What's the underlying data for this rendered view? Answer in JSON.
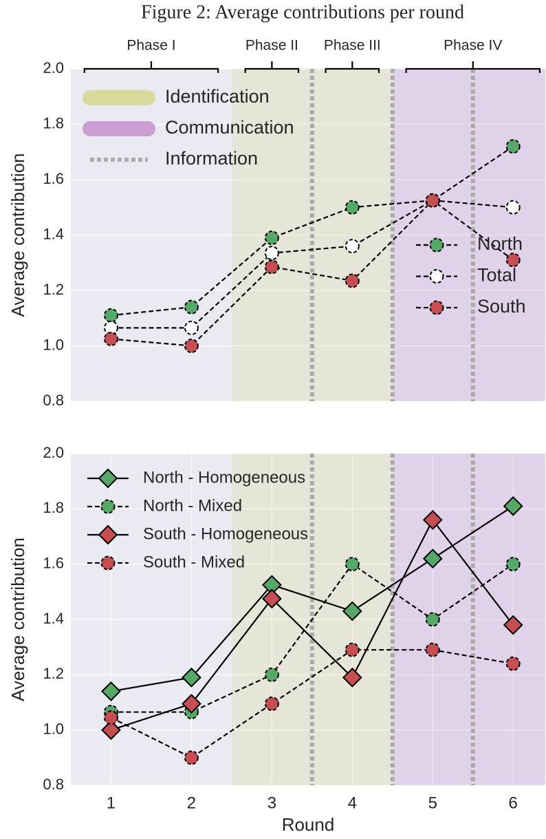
{
  "title": "Figure 2: Average contributions per round",
  "phases": [
    {
      "label": "Phase I",
      "rounds": [
        1,
        2
      ]
    },
    {
      "label": "Phase II",
      "rounds": [
        3
      ]
    },
    {
      "label": "Phase III",
      "rounds": [
        4
      ]
    },
    {
      "label": "Phase IV",
      "rounds": [
        5,
        6
      ]
    }
  ],
  "chart_data": [
    {
      "type": "line",
      "ylabel": "Average contribution",
      "x": [
        1,
        2,
        3,
        4,
        5,
        6
      ],
      "xlim": [
        0.5,
        6.4
      ],
      "ylim": [
        0.8,
        2.0
      ],
      "yticks": [
        0.8,
        {
          "value": 1.0,
          "label": "1.0"
        },
        1.2,
        1.4,
        1.6,
        1.8,
        {
          "value": 2.0,
          "label": "2.0"
        }
      ],
      "grid": true,
      "legend_loc": "lower right",
      "region_legend_loc": "upper left",
      "regions": [
        {
          "name": "Identification",
          "x": [
            2.5,
            4.5
          ],
          "color": "#d6d68c"
        },
        {
          "name": "Communication",
          "x": [
            4.5,
            6.4
          ],
          "color": "#c490d0"
        }
      ],
      "vlines": {
        "name": "Information",
        "x": [
          3.5,
          4.5,
          5.5
        ],
        "color": "#aaaaaa"
      },
      "series": [
        {
          "name": "North",
          "color": "#55a868",
          "marker": "o",
          "linestyle": "dashed",
          "values": [
            1.11,
            1.14,
            1.39,
            1.5,
            1.525,
            1.72
          ]
        },
        {
          "name": "Total",
          "color": "#ffffff",
          "marker": "o",
          "linestyle": "dashed",
          "values": [
            1.065,
            1.065,
            1.335,
            1.36,
            1.525,
            1.5
          ]
        },
        {
          "name": "South",
          "color": "#c44e52",
          "marker": "o",
          "linestyle": "dashed",
          "values": [
            1.025,
            1.0,
            1.285,
            1.235,
            1.525,
            1.31
          ]
        }
      ]
    },
    {
      "type": "line",
      "ylabel": "Average contribution",
      "xlabel": "Round",
      "x": [
        1,
        2,
        3,
        4,
        5,
        6
      ],
      "xlim": [
        0.5,
        6.4
      ],
      "ylim": [
        0.8,
        2.0
      ],
      "xticks": [
        1,
        2,
        3,
        4,
        5,
        6
      ],
      "yticks": [
        0.8,
        {
          "value": 1.0,
          "label": "1.0"
        },
        1.2,
        1.4,
        1.6,
        1.8,
        {
          "value": 2.0,
          "label": "2.0"
        }
      ],
      "grid": true,
      "legend_loc": "upper left",
      "regions": [
        {
          "x": [
            2.5,
            4.5
          ],
          "color": "#d6d68c"
        },
        {
          "x": [
            4.5,
            6.4
          ],
          "color": "#c490d0"
        }
      ],
      "vlines": {
        "x": [
          3.5,
          4.5,
          5.5
        ],
        "color": "#aaaaaa"
      },
      "series": [
        {
          "name": "North - Homogeneous",
          "color": "#55a868",
          "marker": "D",
          "linestyle": "solid",
          "values": [
            1.14,
            1.19,
            1.525,
            1.43,
            1.62,
            1.81
          ]
        },
        {
          "name": "North - Mixed",
          "color": "#55a868",
          "marker": "o",
          "linestyle": "dashed",
          "values": [
            1.065,
            1.065,
            1.2,
            1.6,
            1.4,
            1.6
          ]
        },
        {
          "name": "South - Homogeneous",
          "color": "#c44e52",
          "marker": "D",
          "linestyle": "solid",
          "values": [
            1.0,
            1.095,
            1.475,
            1.19,
            1.76,
            1.38
          ]
        },
        {
          "name": "South - Mixed",
          "color": "#c44e52",
          "marker": "o",
          "linestyle": "dashed",
          "values": [
            1.045,
            0.9,
            1.095,
            1.29,
            1.29,
            1.24
          ]
        }
      ]
    }
  ]
}
